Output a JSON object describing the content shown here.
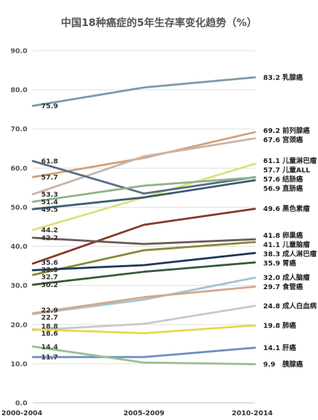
{
  "chart_data": {
    "type": "line",
    "title": "中国18种癌症的5年生存率变化趋势（%）",
    "xlabel": "",
    "ylabel": "",
    "categories": [
      "2000-2004",
      "2005-2009",
      "2010-2014"
    ],
    "ylim": [
      0,
      90
    ],
    "yticks": [
      "0.0",
      "10.0",
      "20.0",
      "30.0",
      "40.0",
      "50.0",
      "60.0",
      "70.0",
      "80.0",
      "90.0"
    ],
    "grid": true,
    "series": [
      {
        "name": "乳腺癌",
        "values": [
          75.9,
          80.6,
          83.2
        ],
        "color": "#7f9aab",
        "start_label": "75.9",
        "end_label": "83.2"
      },
      {
        "name": "前列腺癌",
        "values": [
          57.7,
          62.6,
          69.2
        ],
        "color": "#d4a07a",
        "start_label": "57.7",
        "end_label": "69.2"
      },
      {
        "name": "宫颈癌",
        "values": [
          53.3,
          63.0,
          67.6
        ],
        "color": "#c9b4a8",
        "start_label": "53.3",
        "end_label": "67.6"
      },
      {
        "name": "儿童淋巴瘤",
        "values": [
          44.2,
          52.5,
          61.1
        ],
        "color": "#dfe07a",
        "start_label": "44.2",
        "end_label": "61.1"
      },
      {
        "name": "儿童ALL",
        "values": [
          61.8,
          53.5,
          57.7
        ],
        "color": "#5a6e86",
        "start_label": "61.8",
        "end_label": "57.7"
      },
      {
        "name": "结肠癌",
        "values": [
          51.4,
          55.5,
          57.6
        ],
        "color": "#8fb38a",
        "start_label": "51.4",
        "end_label": "57.6"
      },
      {
        "name": "直肠癌",
        "values": [
          49.5,
          52.5,
          56.9
        ],
        "color": "#3b5f78",
        "start_label": "49.5",
        "end_label": "56.9"
      },
      {
        "name": "黑色素瘤",
        "values": [
          35.6,
          45.5,
          49.6
        ],
        "color": "#8a3a2a",
        "start_label": "35.6",
        "end_label": "49.6"
      },
      {
        "name": "卵巢癌",
        "values": [
          42.2,
          40.6,
          41.8
        ],
        "color": "#6c5a57",
        "start_label": "42.2",
        "end_label": "41.8"
      },
      {
        "name": "儿童脑瘤",
        "values": [
          32.7,
          39.0,
          41.1
        ],
        "color": "#8a8a3a",
        "start_label": "32.7",
        "end_label": "41.1"
      },
      {
        "name": "成人淋巴瘤",
        "values": [
          33.9,
          35.2,
          38.3
        ],
        "color": "#1f3a5a",
        "start_label": "33.9",
        "end_label": "38.3"
      },
      {
        "name": "胃癌",
        "values": [
          30.2,
          33.5,
          35.9
        ],
        "color": "#3a5a3a",
        "start_label": "30.2",
        "end_label": "35.9"
      },
      {
        "name": "成人脑瘤",
        "values": [
          22.7,
          26.4,
          32.0
        ],
        "color": "#a3c4d4",
        "start_label": "22.7",
        "end_label": "32.0"
      },
      {
        "name": "食管癌",
        "values": [
          22.9,
          27.0,
          29.7
        ],
        "color": "#d4a88a",
        "start_label": "22.9",
        "end_label": "29.7"
      },
      {
        "name": "成人白血病",
        "values": [
          18.6,
          20.2,
          24.8
        ],
        "color": "#c9c9c9",
        "start_label": "18.6",
        "end_label": "24.8"
      },
      {
        "name": "肺癌",
        "values": [
          18.8,
          17.8,
          19.8
        ],
        "color": "#e8d84a",
        "start_label": "18.8",
        "end_label": "19.8"
      },
      {
        "name": "肝癌",
        "values": [
          11.7,
          11.7,
          14.1
        ],
        "color": "#6f8fbf",
        "start_label": "11.7",
        "end_label": "14.1"
      },
      {
        "name": "胰腺癌",
        "values": [
          14.4,
          10.3,
          9.9
        ],
        "color": "#9cbf8f",
        "start_label": "14.4",
        "end_label": "9.9"
      }
    ]
  }
}
